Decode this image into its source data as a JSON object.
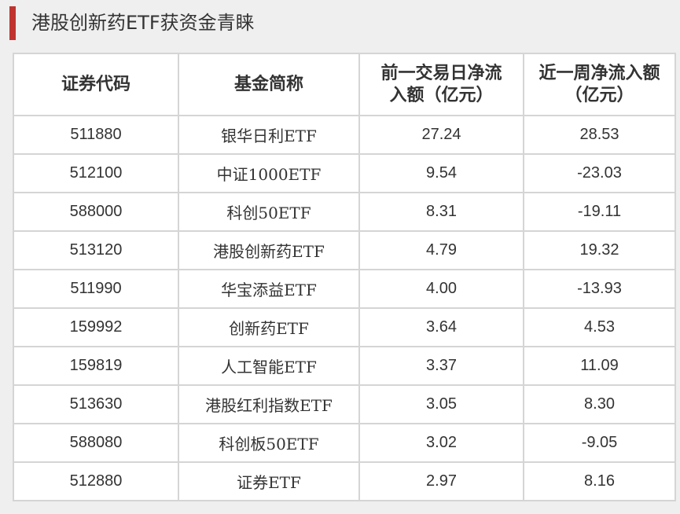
{
  "title": "港股创新药ETF获资金青睐",
  "colors": {
    "accent": "#c0342f",
    "page_bg": "#efefef",
    "cell_bg": "#ffffff",
    "grid": "#d5d5d5"
  },
  "chart_data": {
    "type": "table",
    "title": "港股创新药ETF获资金青睐",
    "columns": [
      {
        "lines": [
          "证券代码"
        ]
      },
      {
        "lines": [
          "基金简称"
        ]
      },
      {
        "lines": [
          "前一交易日净流",
          "入额（亿元）"
        ]
      },
      {
        "lines": [
          "近一周净流入额",
          "（亿元）"
        ]
      }
    ],
    "rows": [
      [
        "511880",
        "银华日利ETF",
        "27.24",
        "28.53"
      ],
      [
        "512100",
        "中证1000ETF",
        "9.54",
        "-23.03"
      ],
      [
        "588000",
        "科创50ETF",
        "8.31",
        "-19.11"
      ],
      [
        "513120",
        "港股创新药ETF",
        "4.79",
        "19.32"
      ],
      [
        "511990",
        "华宝添益ETF",
        "4.00",
        "-13.93"
      ],
      [
        "159992",
        "创新药ETF",
        "3.64",
        "4.53"
      ],
      [
        "159819",
        "人工智能ETF",
        "3.37",
        "11.09"
      ],
      [
        "513630",
        "港股红利指数ETF",
        "3.05",
        "8.30"
      ],
      [
        "588080",
        "科创板50ETF",
        "3.02",
        "-9.05"
      ],
      [
        "512880",
        "证券ETF",
        "2.97",
        "8.16"
      ]
    ]
  }
}
